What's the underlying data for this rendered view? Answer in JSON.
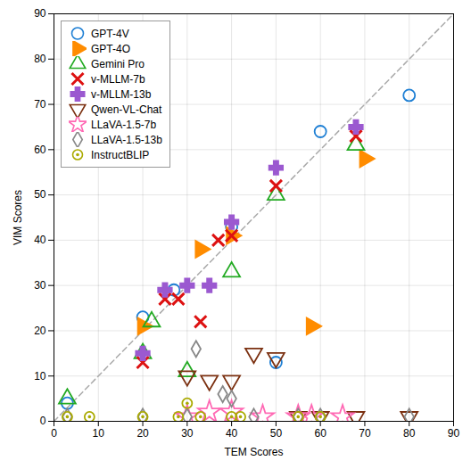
{
  "chart_data": {
    "type": "scatter",
    "xlabel": "TEM Scores",
    "ylabel": "VIM Scores",
    "xlim": [
      0,
      90
    ],
    "ylim": [
      0,
      90
    ],
    "xticks": [
      0,
      10,
      20,
      30,
      40,
      50,
      60,
      70,
      80,
      90
    ],
    "yticks": [
      0,
      10,
      20,
      30,
      40,
      50,
      60,
      70,
      80,
      90
    ],
    "grid": true,
    "legend": "upper left",
    "line_style": "dashed",
    "series": [
      {
        "name": "GPT-4V",
        "color": "#1e7fd4",
        "marker": "circle-open",
        "x": [
          3,
          20,
          27,
          40,
          50,
          60,
          80
        ],
        "values": [
          4,
          23,
          29,
          43,
          13,
          64,
          72
        ]
      },
      {
        "name": "GPT-4O",
        "color": "#ff8c00",
        "marker": "triangle-right",
        "x": [
          20,
          33,
          40,
          58,
          70
        ],
        "values": [
          21,
          38,
          41,
          21,
          58
        ]
      },
      {
        "name": "Gemini Pro",
        "color": "#22aa22",
        "marker": "triangle-up-open",
        "x": [
          3,
          20,
          22,
          30,
          40,
          50,
          68
        ],
        "values": [
          5,
          15,
          22,
          11,
          33,
          50,
          61
        ]
      },
      {
        "name": "v-MLLM-7b",
        "color": "#dd1111",
        "marker": "x",
        "x": [
          20,
          25,
          28,
          33,
          37,
          40,
          50,
          68
        ],
        "values": [
          13,
          27,
          27,
          22,
          40,
          41,
          52,
          63
        ]
      },
      {
        "name": "v-MLLM-13b",
        "color": "#9b59d0",
        "marker": "plus",
        "x": [
          20,
          25,
          30,
          35,
          40,
          50,
          68
        ],
        "values": [
          15,
          29,
          30,
          30,
          44,
          56,
          65
        ]
      },
      {
        "name": "Qwen-VL-Chat",
        "color": "#7b3010",
        "marker": "triangle-down-open",
        "x": [
          30,
          35,
          40,
          45,
          50,
          55,
          60,
          68,
          80
        ],
        "values": [
          10,
          9,
          9,
          15,
          14,
          1,
          1,
          1,
          1
        ]
      },
      {
        "name": "LLaVA-1.5-7b",
        "color": "#ff69b4",
        "marker": "star-open",
        "x": [
          30,
          35,
          40,
          47,
          55,
          58,
          65
        ],
        "values": [
          1,
          2,
          2,
          1,
          1,
          1,
          1
        ]
      },
      {
        "name": "LLaVA-1.5-13b",
        "color": "#888888",
        "marker": "diamond-open",
        "x": [
          3,
          20,
          30,
          32,
          38,
          40,
          45,
          55,
          60,
          80
        ],
        "values": [
          1,
          1,
          1,
          16,
          6,
          5,
          1,
          1,
          1,
          1
        ]
      },
      {
        "name": "InstructBLIP",
        "color": "#aaaa00",
        "marker": "circle-dot-open",
        "x": [
          3,
          8,
          20,
          28,
          30,
          33,
          40,
          42,
          55,
          60
        ],
        "values": [
          1,
          1,
          1,
          1,
          4,
          1,
          1,
          1,
          1,
          1
        ]
      }
    ]
  }
}
